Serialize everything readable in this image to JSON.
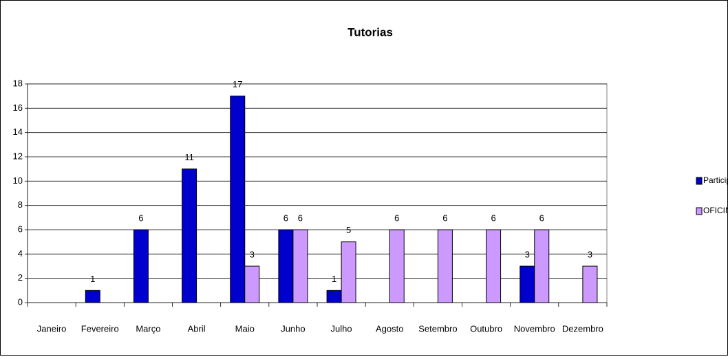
{
  "chart_data": {
    "type": "bar",
    "title": "Tutorias",
    "categories": [
      "Janeiro",
      "Fevereiro",
      "Março",
      "Abril",
      "Maio",
      "Junho",
      "Julho",
      "Agosto",
      "Setembro",
      "Outubro",
      "Novembro",
      "Dezembro"
    ],
    "series": [
      {
        "name": "Participação em TUTORIAS",
        "color": "#0000cc",
        "values": [
          null,
          1,
          6,
          11,
          17,
          6,
          1,
          null,
          null,
          null,
          3,
          null
        ]
      },
      {
        "name": "OFICINA para TUTORES",
        "color": "#cc99ff",
        "values": [
          null,
          null,
          null,
          null,
          3,
          6,
          5,
          6,
          6,
          6,
          6,
          3
        ]
      }
    ],
    "ylim": [
      0,
      18
    ],
    "yticks": [
      0,
      2,
      4,
      6,
      8,
      10,
      12,
      14,
      16,
      18
    ],
    "grid": true,
    "legend": "right"
  }
}
